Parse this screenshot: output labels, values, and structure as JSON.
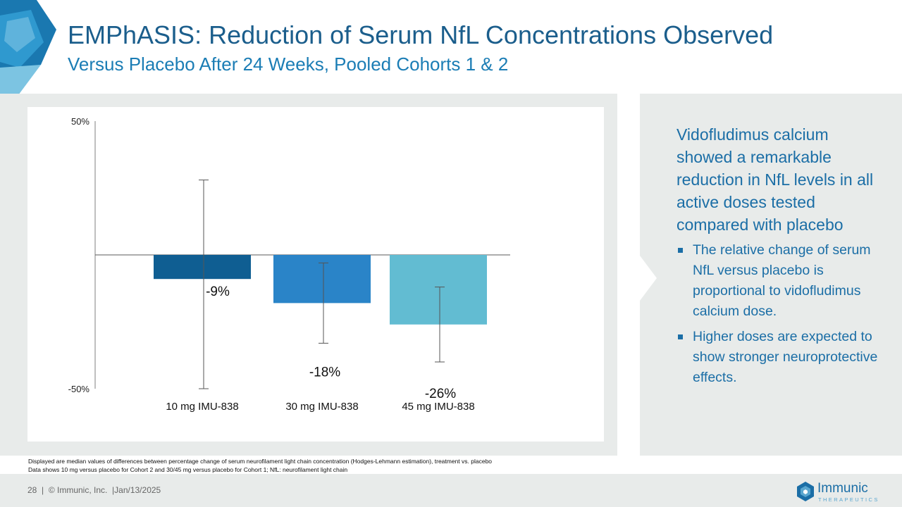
{
  "header": {
    "title": "EMPhASIS: Reduction of Serum NfL Concentrations Observed",
    "subtitle": "Versus Placebo After 24 Weeks, Pooled Cohorts 1 & 2"
  },
  "chart_data": {
    "type": "bar",
    "categories": [
      "10 mg IMU-838",
      "30 mg IMU-838",
      "45 mg IMU-838"
    ],
    "values": [
      -9,
      -18,
      -26
    ],
    "value_labels": [
      "-9%",
      "-18%",
      "-26%"
    ],
    "error_bars": [
      {
        "low": -50,
        "high": 28
      },
      {
        "low": -33,
        "high": -3
      },
      {
        "low": -40,
        "high": -12
      }
    ],
    "colors": [
      "#0f5e92",
      "#2a84c8",
      "#62bcd2"
    ],
    "ylim": [
      -50,
      50
    ],
    "y_tick_labels": [
      "50%",
      "-50%"
    ],
    "title": "",
    "xlabel": "",
    "ylabel": ""
  },
  "side": {
    "main": "Vidofludimus calcium showed a remarkable reduction in NfL levels in all active doses tested compared with placebo",
    "bullets": [
      "The relative change of serum NfL versus placebo is proportional to vidofludimus calcium dose.",
      "Higher doses are expected to show stronger neuroprotective effects."
    ]
  },
  "footnotes": [
    "Displayed are median values of differences between percentage change of serum neurofilament light chain concentration (Hodges-Lehmann estimation), treatment vs. placebo",
    "Data shows 10 mg versus placebo for Cohort 2 and 30/45 mg versus placebo for Cohort 1; NfL: neurofilament light chain"
  ],
  "footer": {
    "page": "28",
    "sep1": "|",
    "copyright": "© Immunic, Inc.",
    "sep2": "|",
    "date": "Jan/13/2025",
    "logo_name": "Immunic",
    "logo_tagline": "THERAPEUTICS"
  }
}
